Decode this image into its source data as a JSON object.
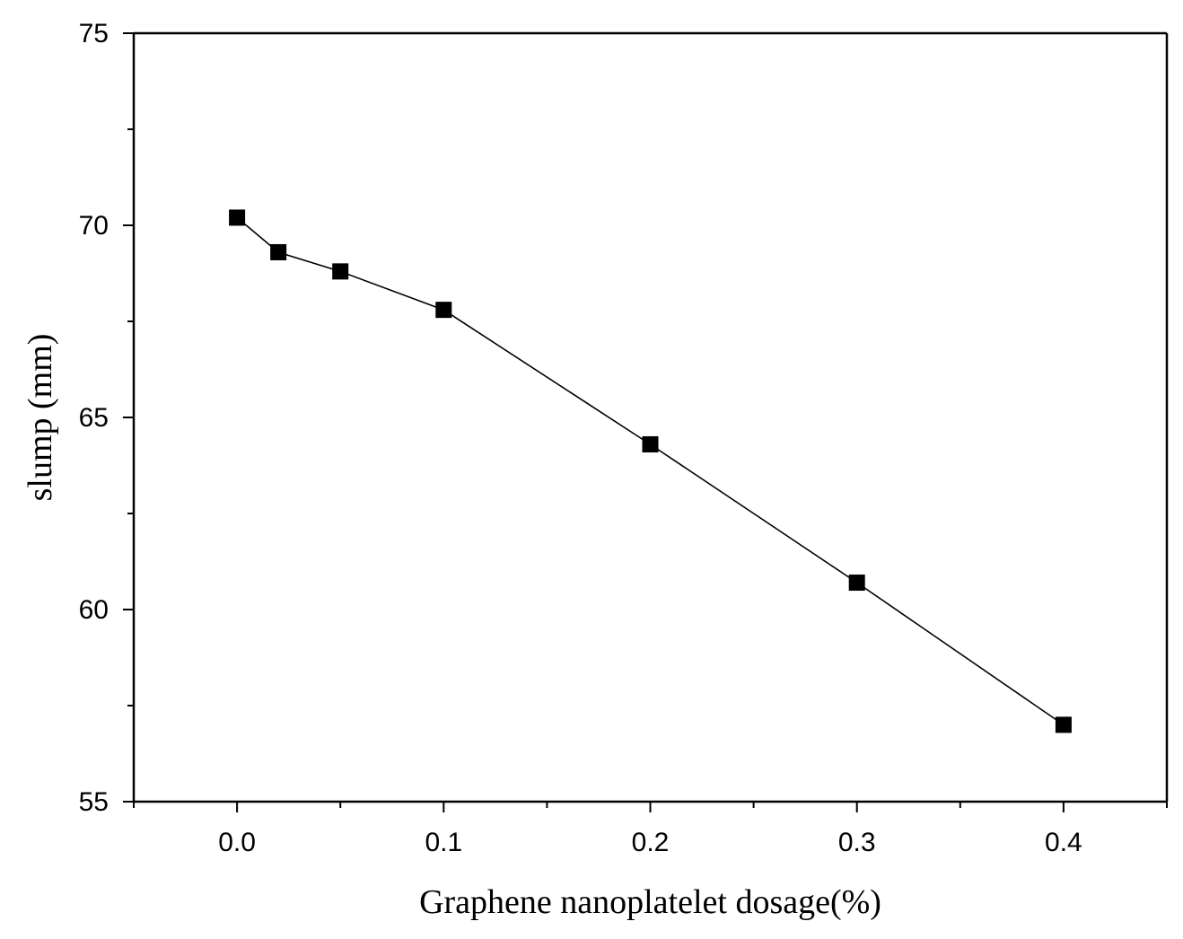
{
  "chart_data": {
    "type": "line",
    "title": "",
    "xlabel": "Graphene nanoplatelet dosage(%)",
    "ylabel": "slump (mm)",
    "xlim": [
      -0.05,
      0.45
    ],
    "ylim": [
      55,
      75
    ],
    "x_ticks": [
      0.0,
      0.1,
      0.2,
      0.3,
      0.4
    ],
    "x_tick_labels": [
      "0.0",
      "0.1",
      "0.2",
      "0.3",
      "0.4"
    ],
    "x_minor_ticks": [
      -0.05,
      0.05,
      0.15,
      0.25,
      0.35,
      0.45
    ],
    "y_ticks": [
      55,
      60,
      65,
      70,
      75
    ],
    "y_tick_labels": [
      "55",
      "60",
      "65",
      "70",
      "75"
    ],
    "y_minor_ticks": [
      57.5,
      62.5,
      67.5,
      72.5
    ],
    "grid": false,
    "box": "right and top border lines without ticks",
    "marker": "filled-square",
    "series": [
      {
        "x": [
          0.0,
          0.02,
          0.05,
          0.1,
          0.2,
          0.3,
          0.4
        ],
        "y": [
          70.2,
          69.3,
          68.8,
          67.8,
          64.3,
          60.7,
          57.0
        ],
        "color": "#000000"
      }
    ]
  }
}
